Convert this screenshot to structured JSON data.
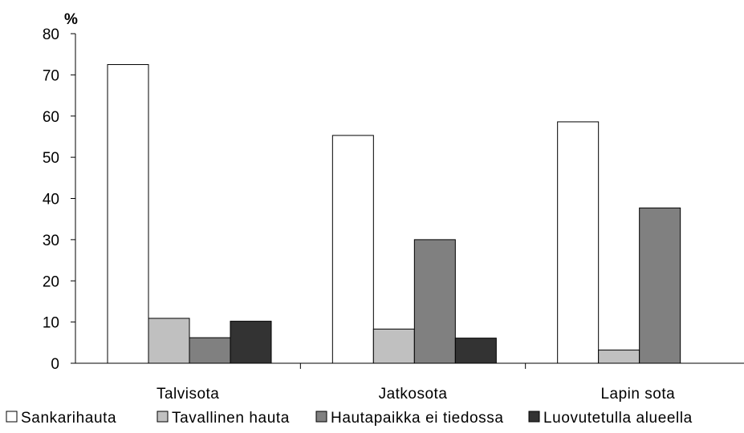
{
  "chart_data": {
    "type": "bar",
    "unit_label": "%",
    "categories": [
      "Talvisota",
      "Jatkosota",
      "Lapin sota"
    ],
    "ylim": [
      0,
      80
    ],
    "yticks": [
      0,
      10,
      20,
      30,
      40,
      50,
      60,
      70,
      80
    ],
    "grid": false,
    "legend_position": "bottom",
    "series": [
      {
        "name": "Sankarihauta",
        "color": "#ffffff",
        "values": [
          72.5,
          55.3,
          58.6
        ]
      },
      {
        "name": "Tavallinen hauta",
        "color": "#c0c0c0",
        "values": [
          10.9,
          8.3,
          3.2
        ]
      },
      {
        "name": "Hautapaikka ei tiedossa",
        "color": "#808080",
        "values": [
          6.2,
          30.0,
          37.7
        ]
      },
      {
        "name": "Luovutetulla alueella",
        "color": "#333333",
        "values": [
          10.2,
          6.1,
          null
        ]
      }
    ]
  }
}
